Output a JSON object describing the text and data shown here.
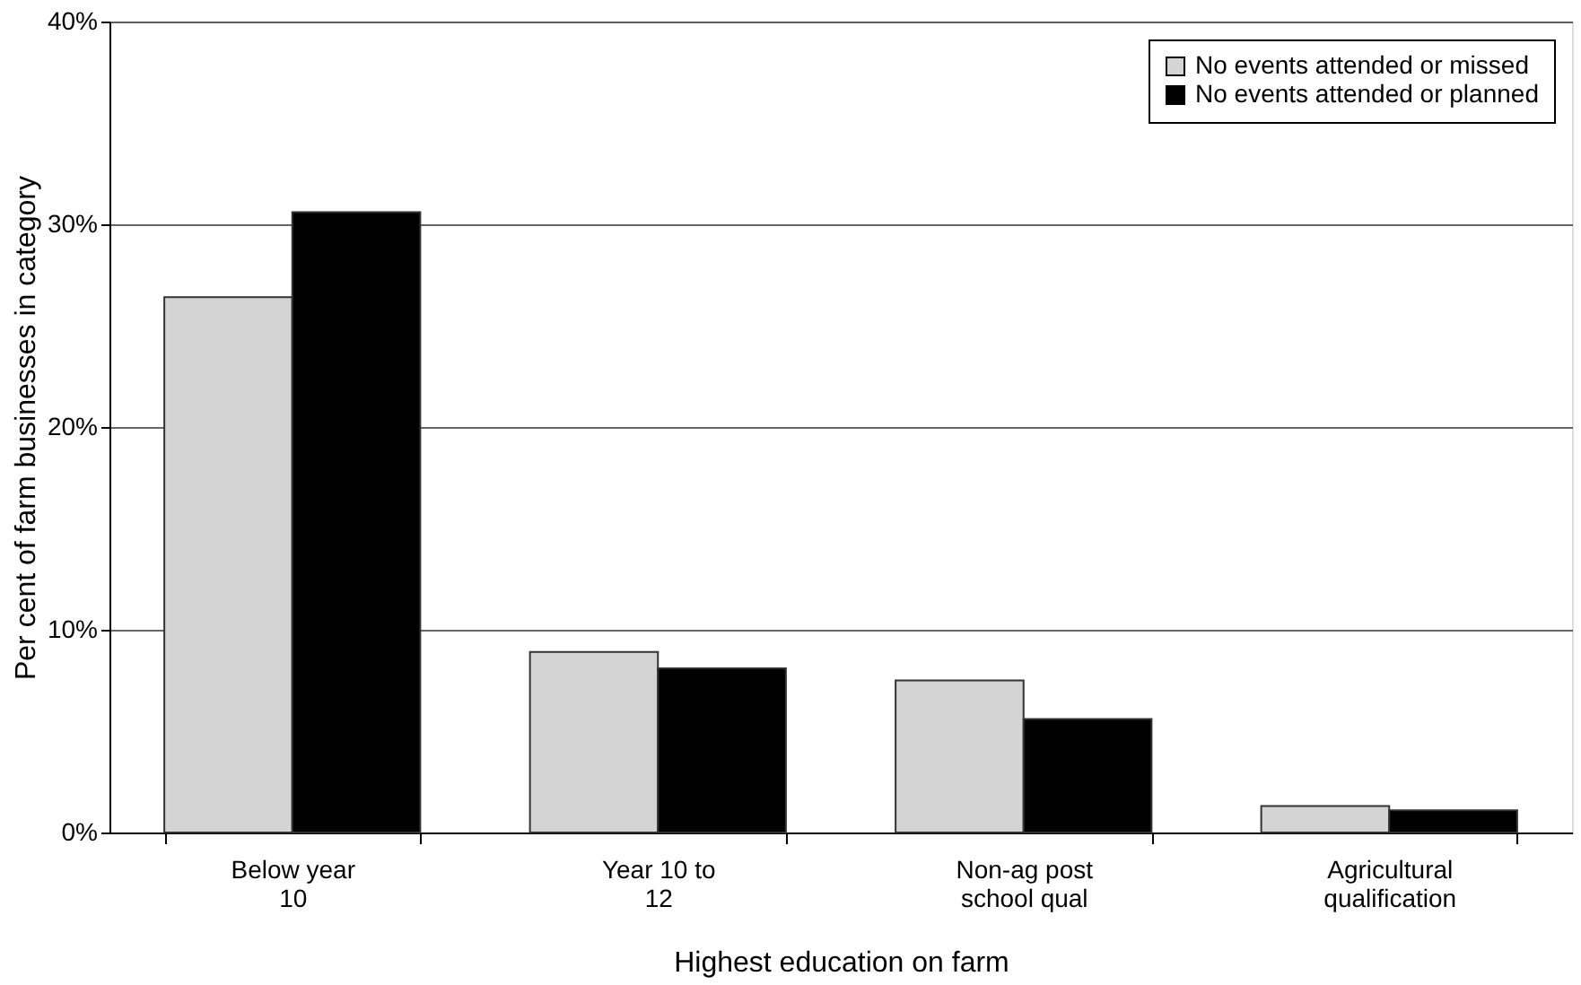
{
  "chart_data": {
    "type": "bar",
    "xlabel": "Highest education on farm",
    "ylabel": "Per cent of farm businesses in category",
    "categories": [
      "Below year 10",
      "Year 10 to 12",
      "Non-ag post school qual",
      "Agricultural qualification"
    ],
    "series": [
      {
        "name": "No events attended or missed",
        "color": "#d4d4d4",
        "values": [
          0.264,
          0.089,
          0.075,
          0.013
        ]
      },
      {
        "name": "No events attended or planned",
        "color": "#000000",
        "values": [
          0.306,
          0.081,
          0.056,
          0.011
        ]
      }
    ],
    "ylim": [
      0,
      0.4
    ],
    "yticks": [
      {
        "value": 0,
        "label": "0%"
      },
      {
        "value": 0.1,
        "label": "10%"
      },
      {
        "value": 0.2,
        "label": "20%"
      },
      {
        "value": 0.3,
        "label": "30%"
      },
      {
        "value": 0.4,
        "label": "40%"
      }
    ],
    "grid": "y",
    "legend": "top right"
  }
}
